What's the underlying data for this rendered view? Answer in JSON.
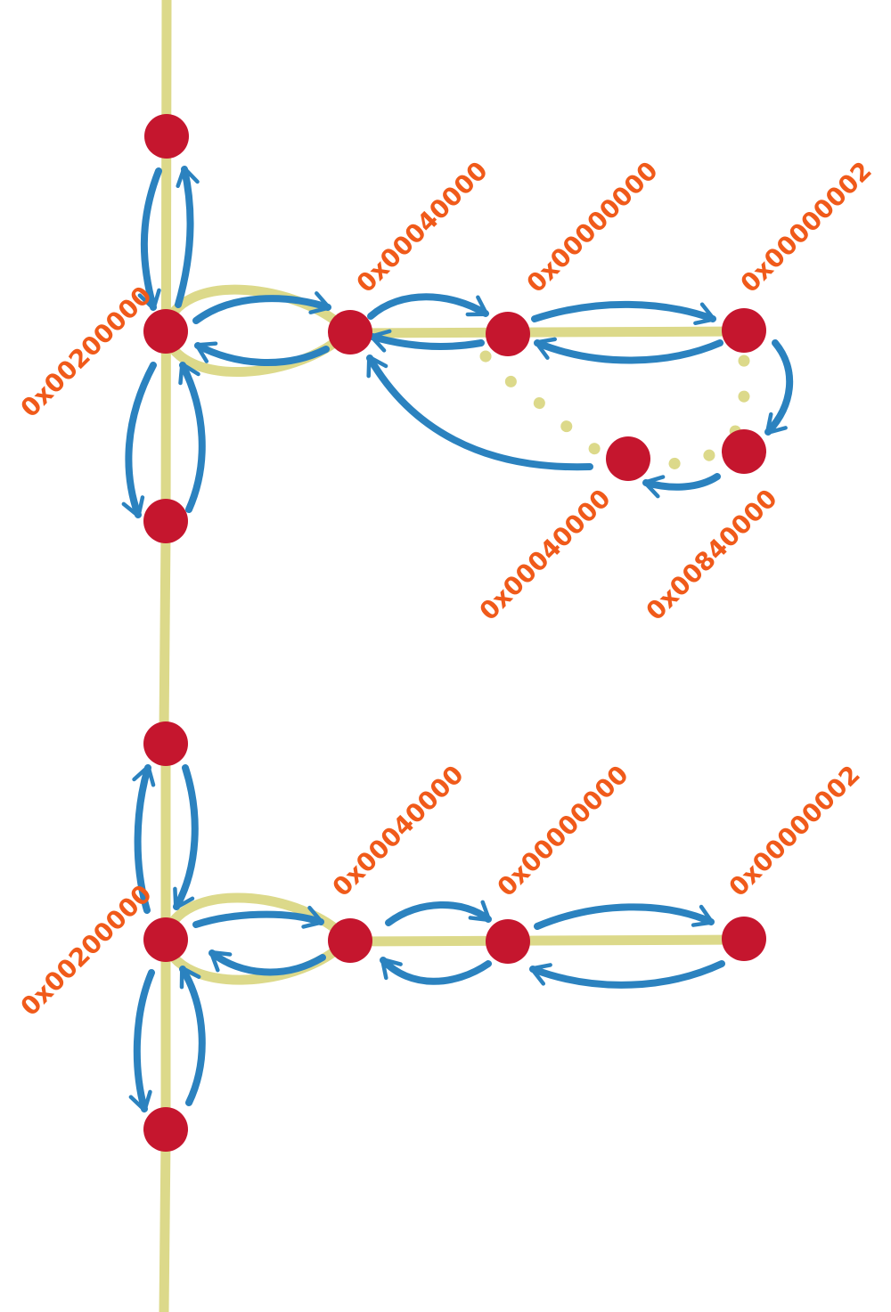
{
  "colors": {
    "track": "#dcd98a",
    "arrow": "#2b82bf",
    "node": "#c5162e",
    "label": "#f05a1a"
  },
  "labels": {
    "top": {
      "root": "0x00200000",
      "n1": "0x00040000",
      "n2": "0x00000000",
      "n3": "0x00000002",
      "n5": "0x00040000",
      "n4": "0x00840000"
    },
    "bottom": {
      "root": "0x00200000",
      "n1": "0x00040000",
      "n2": "0x00000000",
      "n3": "0x00000002"
    }
  }
}
